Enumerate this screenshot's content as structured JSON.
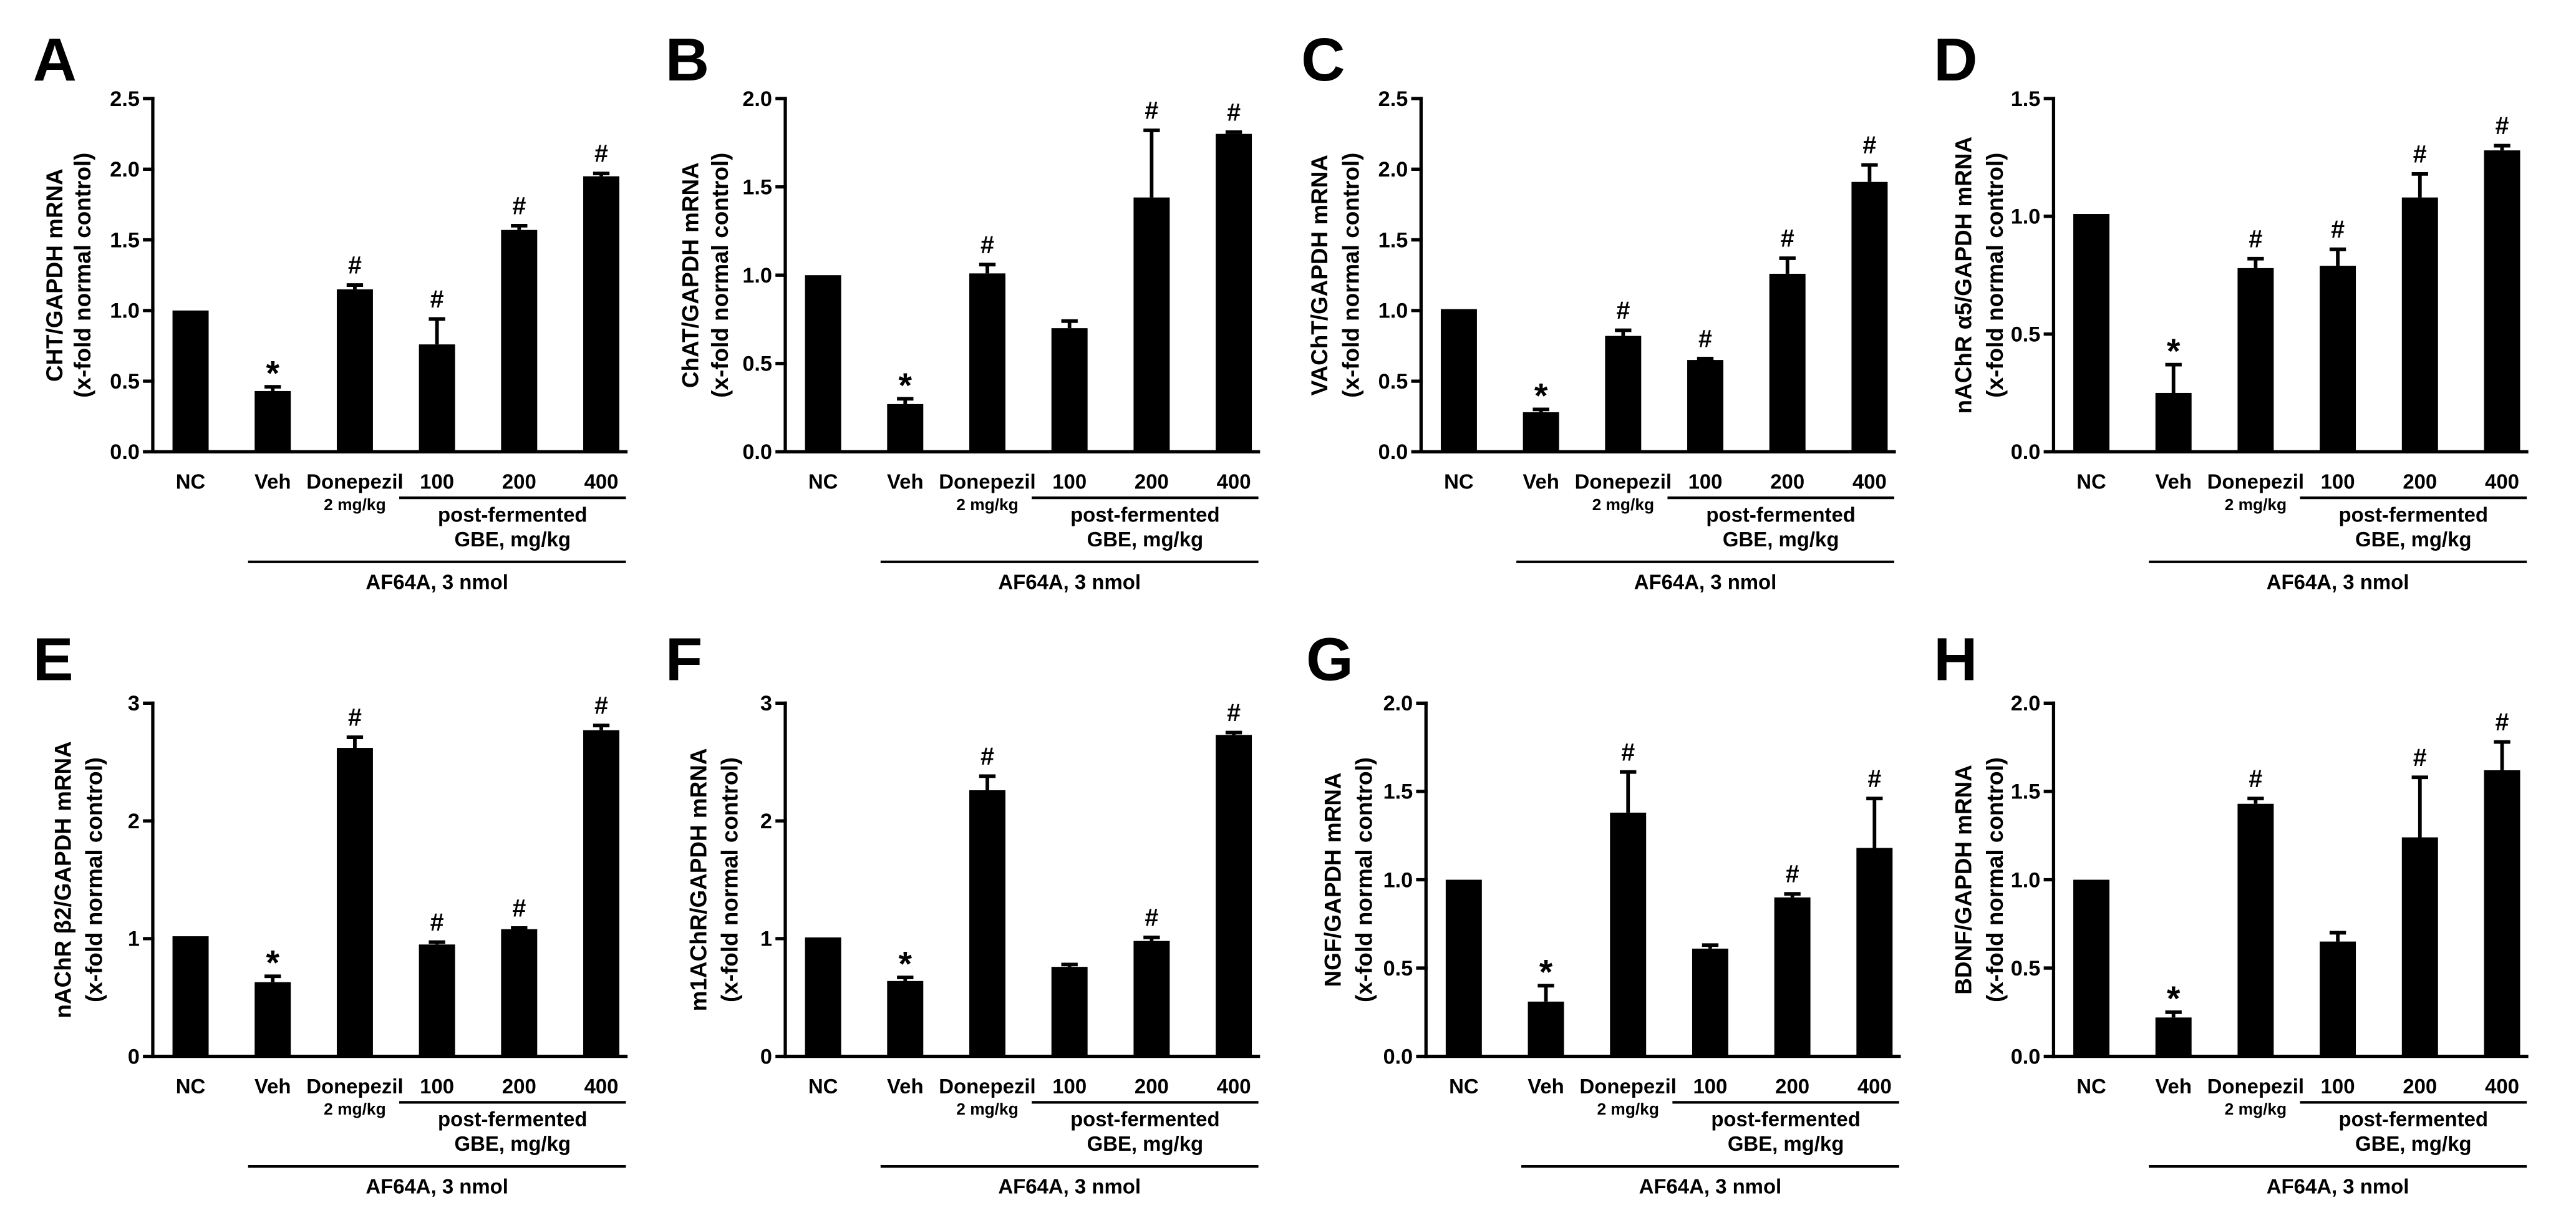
{
  "style": {
    "bar_color": "#000000",
    "background": "#ffffff"
  },
  "chart_data": [
    {
      "panel": "A",
      "type": "bar",
      "ylabel": [
        "CHT/GAPDH mRNA",
        "(x-fold normal control)"
      ],
      "ylim": [
        0,
        2.5
      ],
      "yticks": [
        0,
        0.5,
        1.0,
        1.5,
        2.0,
        2.5
      ],
      "ytick_labels": [
        "0.0",
        "0.5",
        "1.0",
        "1.5",
        "2.0",
        "2.5"
      ],
      "categories": [
        "NC",
        "Veh",
        "Donepezil",
        "100",
        "200",
        "400"
      ],
      "donepezil_dose": "2 mg/kg",
      "group_label": [
        "post-fermented",
        "GBE, mg/kg"
      ],
      "treatment_label": "AF64A, 3 nmol",
      "values": [
        1.0,
        0.43,
        1.15,
        0.76,
        1.57,
        1.95
      ],
      "errors": [
        0,
        0.03,
        0.03,
        0.18,
        0.03,
        0.02
      ],
      "significance": [
        null,
        "*",
        "#",
        "#",
        "#",
        "#"
      ]
    },
    {
      "panel": "B",
      "type": "bar",
      "ylabel": [
        "ChAT/GAPDH mRNA",
        "(x-fold normal control)"
      ],
      "ylim": [
        0,
        2.0
      ],
      "yticks": [
        0,
        0.5,
        1.0,
        1.5,
        2.0
      ],
      "ytick_labels": [
        "0.0",
        "0.5",
        "1.0",
        "1.5",
        "2.0"
      ],
      "categories": [
        "NC",
        "Veh",
        "Donepezil",
        "100",
        "200",
        "400"
      ],
      "donepezil_dose": "2 mg/kg",
      "group_label": [
        "post-fermented",
        "GBE, mg/kg"
      ],
      "treatment_label": "AF64A, 3 nmol",
      "values": [
        1.0,
        0.27,
        1.01,
        0.7,
        1.44,
        1.8
      ],
      "errors": [
        0,
        0.03,
        0.05,
        0.04,
        0.38,
        0.01
      ],
      "significance": [
        null,
        "*",
        "#",
        null,
        "#",
        "#"
      ]
    },
    {
      "panel": "C",
      "type": "bar",
      "ylabel": [
        "VAChT/GAPDH mRNA",
        "(x-fold normal control)"
      ],
      "ylim": [
        0,
        2.5
      ],
      "yticks": [
        0,
        0.5,
        1.0,
        1.5,
        2.0,
        2.5
      ],
      "ytick_labels": [
        "0.0",
        "0.5",
        "1.0",
        "1.5",
        "2.0",
        "2.5"
      ],
      "categories": [
        "NC",
        "Veh",
        "Donepezil",
        "100",
        "200",
        "400"
      ],
      "donepezil_dose": "2 mg/kg",
      "group_label": [
        "post-fermented",
        "GBE, mg/kg"
      ],
      "treatment_label": "AF64A, 3 nmol",
      "values": [
        1.01,
        0.28,
        0.82,
        0.65,
        1.26,
        1.91
      ],
      "errors": [
        0,
        0.02,
        0.04,
        0.01,
        0.11,
        0.12
      ],
      "significance": [
        null,
        "*",
        "#",
        "#",
        "#",
        "#"
      ]
    },
    {
      "panel": "D",
      "type": "bar",
      "ylabel": [
        "nAChR α5/GAPDH mRNA",
        "(x-fold normal control)"
      ],
      "ylim": [
        0,
        1.5
      ],
      "yticks": [
        0,
        0.5,
        1.0,
        1.5
      ],
      "ytick_labels": [
        "0.0",
        "0.5",
        "1.0",
        "1.5"
      ],
      "categories": [
        "NC",
        "Veh",
        "Donepezil",
        "100",
        "200",
        "400"
      ],
      "donepezil_dose": "2 mg/kg",
      "group_label": [
        "post-fermented",
        "GBE, mg/kg"
      ],
      "treatment_label": "AF64A, 3 nmol",
      "values": [
        1.01,
        0.25,
        0.78,
        0.79,
        1.08,
        1.28
      ],
      "errors": [
        0,
        0.12,
        0.04,
        0.07,
        0.1,
        0.02
      ],
      "significance": [
        null,
        "*",
        "#",
        "#",
        "#",
        "#"
      ]
    },
    {
      "panel": "E",
      "type": "bar",
      "ylabel": [
        "nAChR β2/GAPDH mRNA",
        "(x-fold normal control)"
      ],
      "ylim": [
        0,
        3
      ],
      "yticks": [
        0,
        1,
        2,
        3
      ],
      "ytick_labels": [
        "0",
        "1",
        "2",
        "3"
      ],
      "categories": [
        "NC",
        "Veh",
        "Donepezil",
        "100",
        "200",
        "400"
      ],
      "donepezil_dose": "2 mg/kg",
      "group_label": [
        "post-fermented",
        "GBE, mg/kg"
      ],
      "treatment_label": "AF64A, 3 nmol",
      "values": [
        1.02,
        0.63,
        2.62,
        0.95,
        1.08,
        2.77
      ],
      "errors": [
        0,
        0.05,
        0.09,
        0.02,
        0.01,
        0.04
      ],
      "significance": [
        null,
        "*",
        "#",
        "#",
        "#",
        "#"
      ]
    },
    {
      "panel": "F",
      "type": "bar",
      "ylabel": [
        "m1AChR/GAPDH mRNA",
        "(x-fold normal control)"
      ],
      "ylim": [
        0,
        3
      ],
      "yticks": [
        0,
        1,
        2,
        3
      ],
      "ytick_labels": [
        "0",
        "1",
        "2",
        "3"
      ],
      "categories": [
        "NC",
        "Veh",
        "Donepezil",
        "100",
        "200",
        "400"
      ],
      "donepezil_dose": "2 mg/kg",
      "group_label": [
        "post-fermented",
        "GBE, mg/kg"
      ],
      "treatment_label": "AF64A, 3 nmol",
      "values": [
        1.01,
        0.64,
        2.26,
        0.76,
        0.98,
        2.73
      ],
      "errors": [
        0,
        0.03,
        0.12,
        0.02,
        0.03,
        0.02
      ],
      "significance": [
        null,
        "*",
        "#",
        null,
        "#",
        "#"
      ]
    },
    {
      "panel": "G",
      "type": "bar",
      "ylabel": [
        "NGF/GAPDH mRNA",
        "(x-fold normal control)"
      ],
      "ylim": [
        0,
        2.0
      ],
      "yticks": [
        0,
        0.5,
        1.0,
        1.5,
        2.0
      ],
      "ytick_labels": [
        "0.0",
        "0.5",
        "1.0",
        "1.5",
        "2.0"
      ],
      "categories": [
        "NC",
        "Veh",
        "Donepezil",
        "100",
        "200",
        "400"
      ],
      "donepezil_dose": "2 mg/kg",
      "group_label": [
        "post-fermented",
        "GBE, mg/kg"
      ],
      "treatment_label": "AF64A, 3 nmol",
      "values": [
        1.0,
        0.31,
        1.38,
        0.61,
        0.9,
        1.18
      ],
      "errors": [
        0,
        0.09,
        0.23,
        0.02,
        0.02,
        0.28
      ],
      "significance": [
        null,
        "*",
        "#",
        null,
        "#",
        "#"
      ]
    },
    {
      "panel": "H",
      "type": "bar",
      "ylabel": [
        "BDNF/GAPDH mRNA",
        "(x-fold normal control)"
      ],
      "ylim": [
        0,
        2.0
      ],
      "yticks": [
        0,
        0.5,
        1.0,
        1.5,
        2.0
      ],
      "ytick_labels": [
        "0.0",
        "0.5",
        "1.0",
        "1.5",
        "2.0"
      ],
      "categories": [
        "NC",
        "Veh",
        "Donepezil",
        "100",
        "200",
        "400"
      ],
      "donepezil_dose": "2 mg/kg",
      "group_label": [
        "post-fermented",
        "GBE, mg/kg"
      ],
      "treatment_label": "AF64A, 3 nmol",
      "values": [
        1.0,
        0.22,
        1.43,
        0.65,
        1.24,
        1.62
      ],
      "errors": [
        0,
        0.03,
        0.03,
        0.05,
        0.34,
        0.16
      ],
      "significance": [
        null,
        "*",
        "#",
        null,
        "#",
        "#"
      ]
    }
  ]
}
